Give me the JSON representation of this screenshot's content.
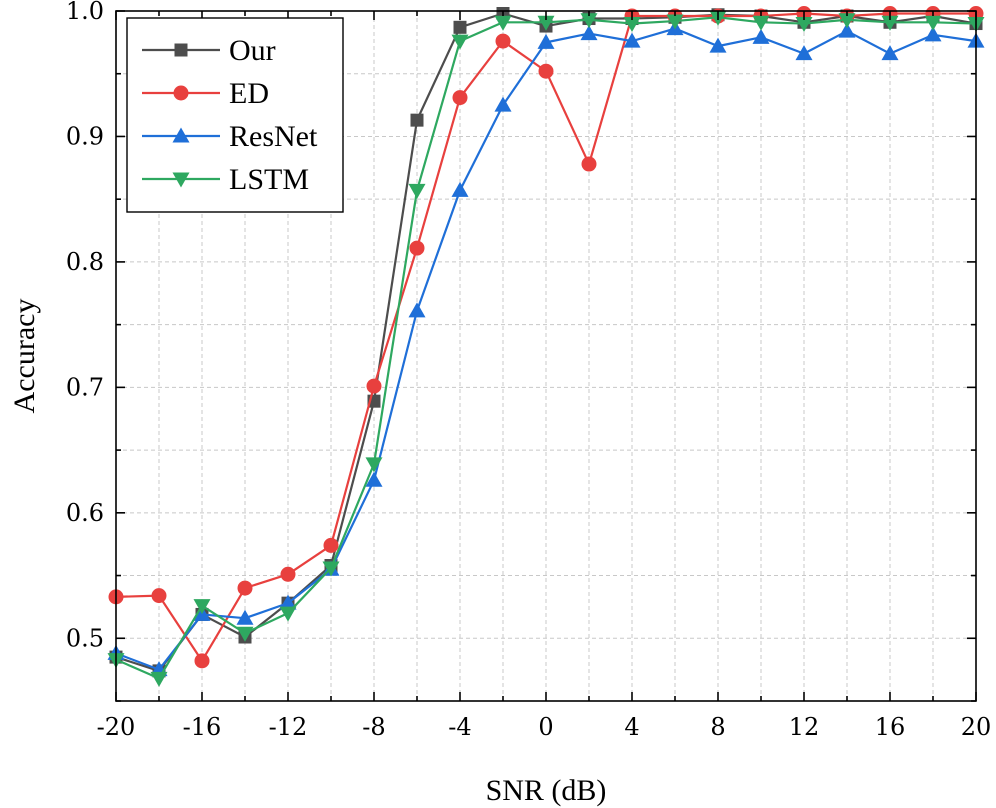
{
  "chart_data": {
    "type": "line",
    "xlabel": "SNR (dB)",
    "ylabel": "Accuracy",
    "xlim": [
      -20,
      20
    ],
    "ylim": [
      0.45,
      1.0
    ],
    "xticks": [
      -20,
      -16,
      -12,
      -8,
      -4,
      0,
      4,
      8,
      12,
      16,
      20
    ],
    "xtick_labels": [
      "-20",
      "-16",
      "-12",
      "-8",
      "-4",
      "0",
      "4",
      "8",
      "12",
      "16",
      "20"
    ],
    "yticks": [
      0.5,
      0.6,
      0.7,
      0.8,
      0.9,
      1.0
    ],
    "ytick_labels": [
      "0.5",
      "0.6",
      "0.7",
      "0.8",
      "0.9",
      "1.0"
    ],
    "grid": true,
    "legend_position": "top-left",
    "x": [
      -20,
      -18,
      -16,
      -14,
      -12,
      -10,
      -8,
      -6,
      -4,
      -2,
      0,
      2,
      4,
      6,
      8,
      10,
      12,
      14,
      16,
      18,
      20
    ],
    "series": [
      {
        "name": "Our",
        "color": "#4d4d4d",
        "marker": "square",
        "values": [
          0.485,
          0.474,
          0.519,
          0.501,
          0.528,
          0.558,
          0.689,
          0.913,
          0.987,
          0.998,
          0.988,
          0.994,
          0.994,
          0.995,
          0.997,
          0.996,
          0.991,
          0.996,
          0.991,
          0.996,
          0.99
        ]
      },
      {
        "name": "ED",
        "color": "#e8403e",
        "marker": "circle",
        "values": [
          0.533,
          0.534,
          0.482,
          0.54,
          0.551,
          0.574,
          0.701,
          0.811,
          0.931,
          0.976,
          0.952,
          0.878,
          0.996,
          0.996,
          0.996,
          0.996,
          0.998,
          0.996,
          0.998,
          0.998,
          0.998
        ]
      },
      {
        "name": "ResNet",
        "color": "#1f6fd8",
        "marker": "triangle-up",
        "values": [
          0.488,
          0.475,
          0.519,
          0.516,
          0.528,
          0.555,
          0.626,
          0.761,
          0.857,
          0.925,
          0.975,
          0.982,
          0.976,
          0.986,
          0.972,
          0.979,
          0.966,
          0.984,
          0.966,
          0.981,
          0.976
        ]
      },
      {
        "name": "LSTM",
        "color": "#2ea860",
        "marker": "triangle-down",
        "values": [
          0.483,
          0.468,
          0.526,
          0.504,
          0.52,
          0.556,
          0.639,
          0.857,
          0.976,
          0.991,
          0.991,
          0.993,
          0.99,
          0.992,
          0.995,
          0.991,
          0.99,
          0.993,
          0.991,
          0.991,
          0.99
        ]
      }
    ]
  }
}
